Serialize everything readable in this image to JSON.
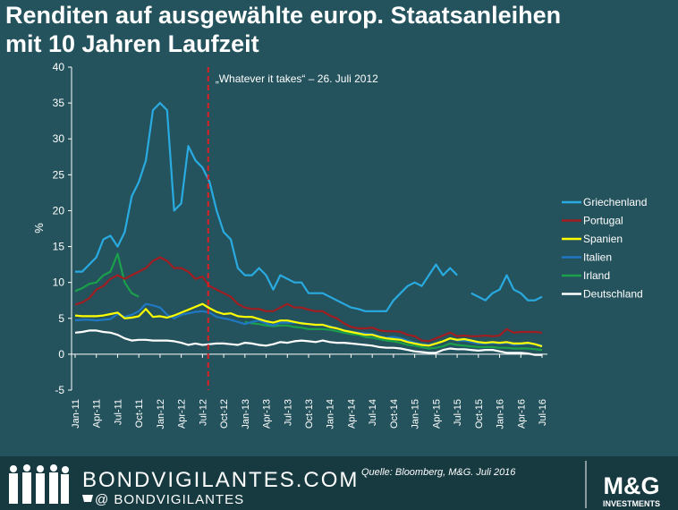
{
  "chart_data": {
    "type": "line",
    "title": "Renditen auf ausgewählte europ. Staatsanleihen",
    "subtitle": "mit 10 Jahren Laufzeit",
    "ylabel": "%",
    "annotation": "„Whatever it takes“ – 26. Juli 2012",
    "source": "Quelle: Bloomberg, M&G. Juli 2016",
    "ylim": [
      -5,
      40
    ],
    "yticks": [
      -5,
      0,
      5,
      10,
      15,
      20,
      25,
      30,
      35,
      40
    ],
    "categories": [
      "Jan-11",
      null,
      null,
      "Apr-11",
      null,
      null,
      "Jul-11",
      null,
      null,
      "Oct-11",
      null,
      null,
      "Jan-12",
      null,
      null,
      "Apr-12",
      null,
      null,
      "Jul-12",
      null,
      null,
      "Oct-12",
      null,
      null,
      "Jan-13",
      null,
      null,
      "Apr-13",
      null,
      null,
      "Jul-13",
      null,
      null,
      "Oct-13",
      null,
      null,
      "Jan-14",
      null,
      null,
      "Apr-14",
      null,
      null,
      "Jul-14",
      null,
      null,
      "Oct-14",
      null,
      null,
      "Jan-15",
      null,
      null,
      "Apr-15",
      null,
      null,
      "Jul-15",
      null,
      null,
      "Oct-15",
      null,
      null,
      "Jan-16",
      null,
      null,
      "Apr-16",
      null,
      null,
      "Jul-16"
    ],
    "series": [
      {
        "name": "Griechenland",
        "color": "#29abe2",
        "values": [
          11.5,
          11.5,
          12.5,
          13.5,
          16,
          16.5,
          15,
          17,
          22,
          24,
          27,
          34,
          35,
          34,
          20,
          21,
          29,
          27,
          26,
          24,
          20,
          17,
          16,
          12,
          11,
          11,
          12,
          11,
          9,
          11,
          10.5,
          10,
          10,
          8.5,
          8.5,
          8.5,
          8,
          7.5,
          7,
          6.5,
          6.3,
          6,
          6,
          6,
          6,
          7.5,
          8.5,
          9.5,
          10,
          9.5,
          11,
          12.5,
          11,
          12,
          11,
          null,
          8.5,
          8,
          7.5,
          8.5,
          9,
          11,
          9,
          8.5,
          7.5,
          7.5,
          8
        ]
      },
      {
        "name": "Portugal",
        "color": "#a01e22",
        "values": [
          6.9,
          7.2,
          7.8,
          9,
          9.5,
          10.5,
          11,
          10.5,
          11,
          11.5,
          12,
          13,
          13.5,
          13,
          12,
          12,
          11.5,
          10.5,
          10.8,
          9.5,
          9,
          8.5,
          8,
          7,
          6.5,
          6.3,
          6.3,
          6,
          6,
          6.5,
          7,
          6.5,
          6.5,
          6.2,
          6,
          6,
          5.4,
          5,
          4.3,
          3.8,
          3.6,
          3.6,
          3.7,
          3.3,
          3.2,
          3.2,
          3.1,
          2.7,
          2.5,
          1.9,
          1.8,
          2.2,
          2.6,
          3,
          2.5,
          2.6,
          2.5,
          2.5,
          2.6,
          2.5,
          2.6,
          3.5,
          3,
          3.1,
          3.1,
          3.1,
          3
        ]
      },
      {
        "name": "Spanien",
        "color": "#ffff00",
        "values": [
          5.4,
          5.3,
          5.3,
          5.3,
          5.4,
          5.6,
          5.8,
          5,
          5.1,
          5.3,
          6.3,
          5.2,
          5.3,
          5.1,
          5.4,
          5.8,
          6.2,
          6.6,
          7,
          6.4,
          5.9,
          5.6,
          5.7,
          5.3,
          5.2,
          5.2,
          4.9,
          4.6,
          4.4,
          4.7,
          4.7,
          4.5,
          4.3,
          4.2,
          4.1,
          4.1,
          3.8,
          3.6,
          3.3,
          3.1,
          2.9,
          2.7,
          2.7,
          2.4,
          2.2,
          2.1,
          2,
          1.7,
          1.5,
          1.3,
          1.2,
          1.5,
          1.8,
          2.2,
          2,
          2.1,
          1.9,
          1.7,
          1.6,
          1.7,
          1.6,
          1.7,
          1.5,
          1.5,
          1.6,
          1.4,
          1.1
        ]
      },
      {
        "name": "Italien",
        "color": "#1f78c1",
        "values": [
          4.7,
          4.8,
          4.8,
          4.7,
          4.8,
          4.9,
          5.6,
          5.2,
          5.5,
          6,
          7,
          6.8,
          6.5,
          5.5,
          5,
          5.5,
          5.7,
          5.9,
          6,
          5.8,
          5.2,
          5,
          4.8,
          4.5,
          4.2,
          4.5,
          4.7,
          4.3,
          4,
          4.4,
          4.4,
          4.4,
          4.4,
          4.2,
          4.1,
          4.1,
          3.9,
          3.6,
          3.3,
          3.1,
          3,
          2.9,
          2.8,
          2.5,
          2.3,
          2.4,
          2.2,
          1.9,
          1.6,
          1.4,
          1.3,
          1.5,
          1.8,
          2.2,
          1.9,
          1.9,
          1.7,
          1.5,
          1.5,
          1.6,
          1.5,
          1.6,
          1.3,
          1.4,
          1.5,
          1.4,
          1.2
        ]
      },
      {
        "name": "Irland",
        "color": "#1aa04a",
        "values": [
          8.8,
          9.2,
          9.8,
          10,
          11,
          11.5,
          14,
          10,
          8.5,
          8,
          null,
          null,
          null,
          null,
          null,
          null,
          null,
          null,
          null,
          null,
          null,
          null,
          null,
          null,
          4.5,
          4.3,
          4.2,
          4,
          3.9,
          4,
          4,
          3.8,
          3.7,
          3.5,
          3.5,
          3.5,
          3.4,
          3.2,
          3,
          2.8,
          2.7,
          2.4,
          2.3,
          2.1,
          1.9,
          1.8,
          1.6,
          1.3,
          1.2,
          1,
          0.8,
          0.9,
          1.1,
          1.5,
          1.3,
          1.2,
          1.1,
          1,
          1,
          1,
          0.9,
          0.9,
          0.8,
          0.8,
          0.8,
          0.7,
          0.6
        ]
      },
      {
        "name": "Deutschland",
        "color": "#ffffff",
        "values": [
          3,
          3.1,
          3.3,
          3.3,
          3.1,
          3,
          2.7,
          2.2,
          1.9,
          2,
          2,
          1.9,
          1.9,
          1.9,
          1.8,
          1.6,
          1.3,
          1.5,
          1.3,
          1.4,
          1.5,
          1.5,
          1.4,
          1.3,
          1.6,
          1.5,
          1.3,
          1.2,
          1.4,
          1.7,
          1.6,
          1.8,
          1.9,
          1.8,
          1.7,
          1.9,
          1.7,
          1.6,
          1.6,
          1.5,
          1.4,
          1.3,
          1.2,
          1,
          0.9,
          0.9,
          0.8,
          0.6,
          0.4,
          0.3,
          0.2,
          0.2,
          0.6,
          0.8,
          0.7,
          0.7,
          0.6,
          0.5,
          0.6,
          0.6,
          0.4,
          0.2,
          0.2,
          0.2,
          0.1,
          -0.1,
          -0.1
        ]
      }
    ]
  },
  "footer": {
    "site": "BONDVIGILANTES.COM",
    "handle": "@ BONDVIGILANTES",
    "brand": "M&G",
    "brand_sub": "INVESTMENTS"
  }
}
